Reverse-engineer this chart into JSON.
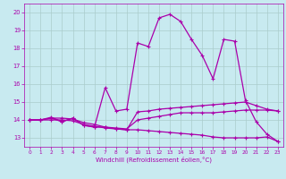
{
  "xlabel": "Windchill (Refroidissement éolien,°C)",
  "x_ticks": [
    0,
    1,
    2,
    3,
    4,
    5,
    6,
    7,
    8,
    9,
    10,
    11,
    12,
    13,
    14,
    15,
    16,
    17,
    18,
    19,
    20,
    21,
    22,
    23
  ],
  "ylim": [
    12.5,
    20.5
  ],
  "xlim": [
    -0.5,
    23.5
  ],
  "yticks": [
    13,
    14,
    15,
    16,
    17,
    18,
    19,
    20
  ],
  "bg_color": "#c8eaf0",
  "line_color": "#aa00aa",
  "grid_color": "#aacccc",
  "lines": [
    [
      14.0,
      14.0,
      14.1,
      13.9,
      14.1,
      13.7,
      13.6,
      15.8,
      14.5,
      14.6,
      18.3,
      18.1,
      19.7,
      19.9,
      19.5,
      18.5,
      17.6,
      16.3,
      18.5,
      18.4,
      15.1,
      13.9,
      13.2,
      12.8
    ],
    [
      14.0,
      14.0,
      14.15,
      13.9,
      14.1,
      13.7,
      13.6,
      13.6,
      13.5,
      13.45,
      14.45,
      14.5,
      14.6,
      14.65,
      14.7,
      14.75,
      14.8,
      14.85,
      14.9,
      14.95,
      15.0,
      14.8,
      14.6,
      14.5
    ],
    [
      14.0,
      14.0,
      14.1,
      14.1,
      14.05,
      13.85,
      13.75,
      13.6,
      13.55,
      13.5,
      14.0,
      14.1,
      14.2,
      14.3,
      14.4,
      14.4,
      14.4,
      14.4,
      14.45,
      14.5,
      14.55,
      14.55,
      14.55,
      14.5
    ],
    [
      14.0,
      14.0,
      14.0,
      14.0,
      13.95,
      13.75,
      13.65,
      13.55,
      13.5,
      13.45,
      13.45,
      13.4,
      13.35,
      13.3,
      13.25,
      13.2,
      13.15,
      13.05,
      13.0,
      13.0,
      13.0,
      13.0,
      13.05,
      12.8
    ]
  ]
}
